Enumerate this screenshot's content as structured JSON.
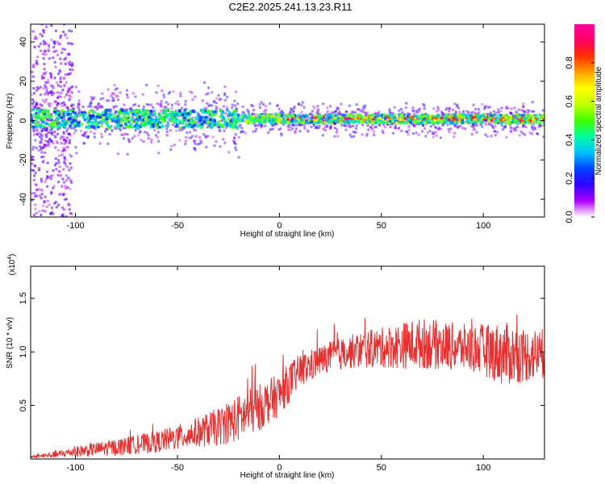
{
  "title": "C2E2.2025.241.13.23.R11",
  "chart_data": [
    {
      "type": "heatmap",
      "name": "spectrogram",
      "xlabel": "Height of straight line (km)",
      "ylabel": "Frequency (Hz)",
      "xlim": [
        -122,
        130
      ],
      "ylim": [
        -49,
        49
      ],
      "xticks": [
        -100,
        -50,
        0,
        50,
        100
      ],
      "xtick_labels": [
        "-100",
        "-50",
        "0",
        "50",
        "100"
      ],
      "yticks": [
        -40,
        -20,
        0,
        20,
        40
      ],
      "ytick_labels": [
        "-40",
        "-20",
        "0",
        "20",
        "40"
      ],
      "colorbar": {
        "label": "Normalized spectral amplitude",
        "range": [
          0,
          1
        ],
        "ticks": [
          0.0,
          0.2,
          0.4,
          0.6,
          0.8
        ],
        "tick_labels": [
          "0.0",
          "0.2",
          "0.4",
          "0.6",
          "0.8"
        ],
        "colors": [
          "#ffffff",
          "#b000ff",
          "#3000ff",
          "#0040ff",
          "#00c0ff",
          "#00ffa0",
          "#40ff00",
          "#c0ff00",
          "#ffff00",
          "#ffa000",
          "#ff3000",
          "#ff0060",
          "#ff00a0"
        ]
      },
      "band": {
        "center_freq_hz": 1,
        "description": "energy concentrated near 0-5 Hz across all heights; broadband scatter below -100 km; strongest (red) amplitudes from 0 to 130 km"
      }
    },
    {
      "type": "line",
      "name": "snr",
      "xlabel": "Height of straight line (km)",
      "ylabel": "SNR (10 * v/v)",
      "y_multiplier": "(x10",
      "y_multiplier_exp": "4",
      "y_multiplier_close": ")",
      "xlim": [
        -122,
        130
      ],
      "ylim": [
        0,
        1.8
      ],
      "xticks": [
        -100,
        -50,
        0,
        50,
        100
      ],
      "xtick_labels": [
        "-100",
        "-50",
        "0",
        "50",
        "100"
      ],
      "yticks": [
        0.5,
        1.0,
        1.5
      ],
      "ytick_labels": [
        "0.5",
        "1.0",
        "1.5"
      ],
      "color": "#e83030",
      "trend": {
        "x": [
          -122,
          -110,
          -100,
          -80,
          -60,
          -50,
          -40,
          -30,
          -20,
          -10,
          0,
          5,
          10,
          20,
          25,
          30,
          40,
          50,
          60,
          70,
          80,
          90,
          100,
          110,
          120,
          130
        ],
        "y": [
          0.02,
          0.04,
          0.07,
          0.11,
          0.16,
          0.2,
          0.25,
          0.3,
          0.38,
          0.48,
          0.6,
          0.72,
          0.82,
          0.92,
          0.96,
          0.98,
          1.02,
          1.04,
          1.06,
          1.08,
          1.06,
          1.04,
          1.02,
          0.98,
          0.97,
          0.98
        ],
        "amplitude": [
          0.01,
          0.03,
          0.05,
          0.08,
          0.1,
          0.12,
          0.14,
          0.18,
          0.22,
          0.22,
          0.2,
          0.18,
          0.16,
          0.14,
          0.14,
          0.15,
          0.17,
          0.19,
          0.22,
          0.24,
          0.23,
          0.22,
          0.24,
          0.3,
          0.26,
          0.24
        ]
      }
    }
  ]
}
